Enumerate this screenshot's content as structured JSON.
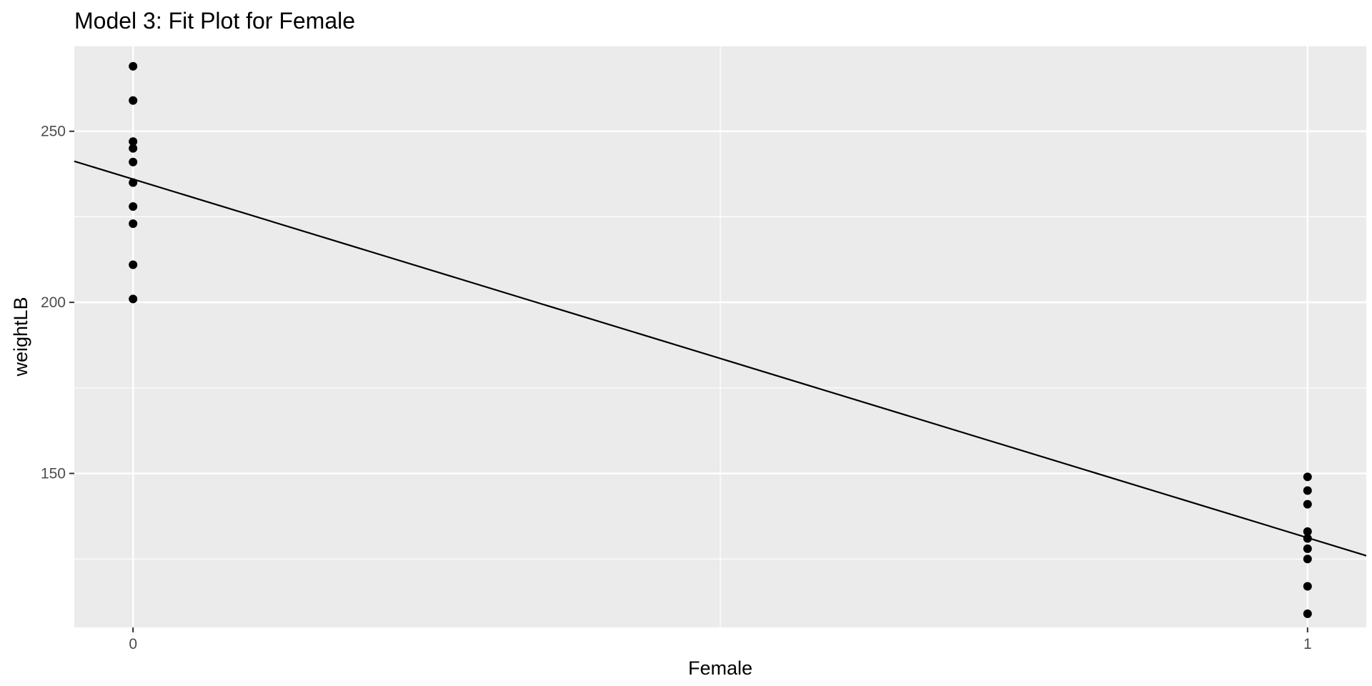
{
  "chart_data": {
    "type": "scatter",
    "title": "Model 3: Fit Plot for Female",
    "xlabel": "Female",
    "ylabel": "weightLB",
    "xlim": [
      -0.05,
      1.05
    ],
    "ylim": [
      105,
      275
    ],
    "x_ticks": [
      0,
      1
    ],
    "x_tick_labels": [
      "0",
      "1"
    ],
    "x_minor_ticks": [
      0.5
    ],
    "y_ticks": [
      150,
      200,
      250
    ],
    "y_tick_labels": [
      "150",
      "200",
      "250"
    ],
    "y_minor_ticks": [
      125,
      175,
      225,
      275
    ],
    "grid": true,
    "legend": "none",
    "colors": {
      "panel": "#EBEBEB",
      "grid": "#FFFFFF",
      "points": "#000000",
      "line": "#000000",
      "tick_label": "#4D4D4D"
    },
    "points": [
      {
        "x": 0,
        "y": 269
      },
      {
        "x": 0,
        "y": 259
      },
      {
        "x": 0,
        "y": 247
      },
      {
        "x": 0,
        "y": 245
      },
      {
        "x": 0,
        "y": 241
      },
      {
        "x": 0,
        "y": 235
      },
      {
        "x": 0,
        "y": 228
      },
      {
        "x": 0,
        "y": 223
      },
      {
        "x": 0,
        "y": 211
      },
      {
        "x": 0,
        "y": 201
      },
      {
        "x": 1,
        "y": 149
      },
      {
        "x": 1,
        "y": 145
      },
      {
        "x": 1,
        "y": 141
      },
      {
        "x": 1,
        "y": 133
      },
      {
        "x": 1,
        "y": 131
      },
      {
        "x": 1,
        "y": 128
      },
      {
        "x": 1,
        "y": 125
      },
      {
        "x": 1,
        "y": 117
      },
      {
        "x": 1,
        "y": 109
      }
    ],
    "fit_line": {
      "intercept": 236,
      "slope": -104.8
    }
  }
}
